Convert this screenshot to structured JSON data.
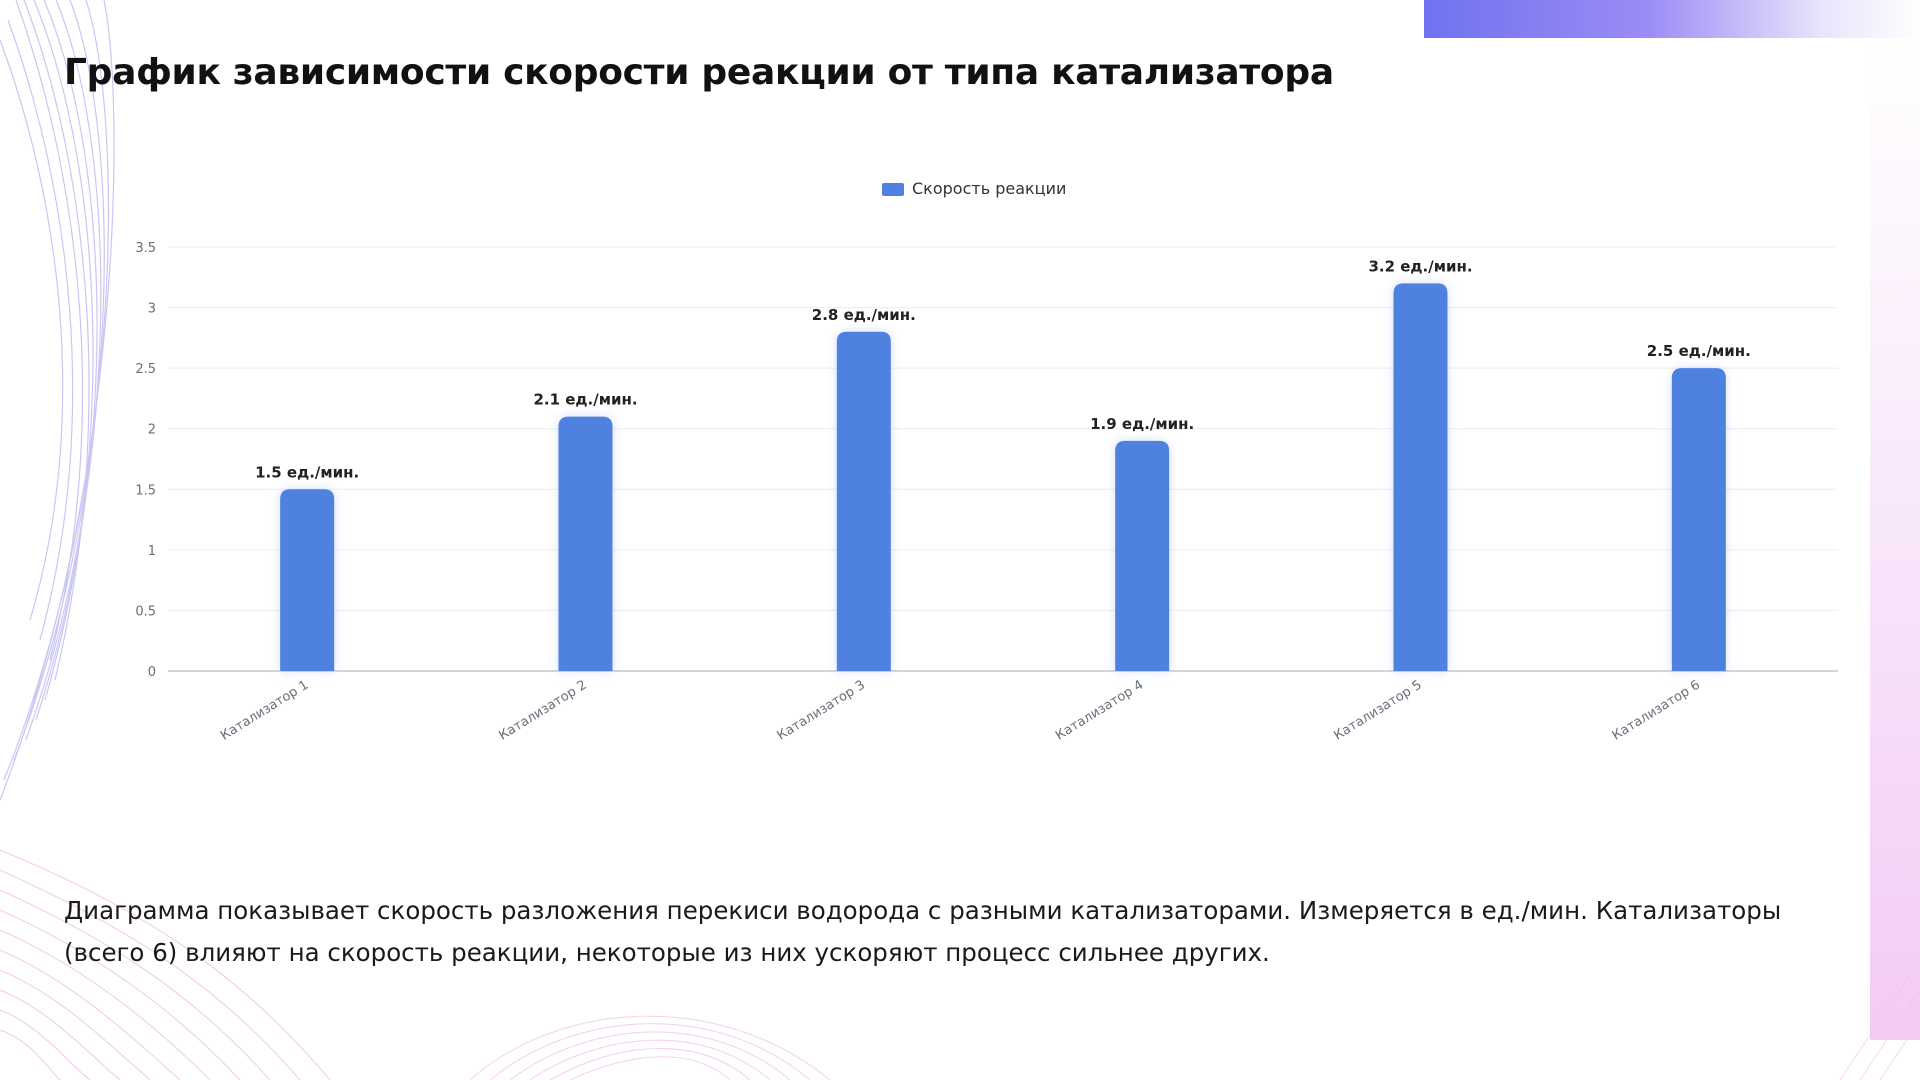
{
  "page": {
    "title": "График зависимости скорости реакции от типа катализатора",
    "caption": "Диаграмма показывает скорость разложения перекиси водорода с разными катализаторами. Измеряется в ед./мин. Катализаторы (всего 6) влияют на скорость реакции, некоторые из них ускоряют процесс сильнее других."
  },
  "colors": {
    "bar": "#4f82e0",
    "grid": "#ececf2",
    "axis": "#b9bccb",
    "tick_text": "#6b6e7a",
    "label_text": "#222222",
    "accent": "#7b7cf2"
  },
  "chart_data": {
    "type": "bar",
    "categories": [
      "Катализатор 1",
      "Катализатор 2",
      "Катализатор 3",
      "Катализатор 4",
      "Катализатор 5",
      "Катализатор 6"
    ],
    "series": [
      {
        "name": "Скорость реакции",
        "values": [
          1.5,
          2.1,
          2.8,
          1.9,
          3.2,
          2.5
        ],
        "data_labels": [
          "1.5 ед./мин.",
          "2.1 ед./мин.",
          "2.8 ед./мин.",
          "1.9 ед./мин.",
          "3.2 ед./мин.",
          "2.5 ед./мин."
        ]
      }
    ],
    "yticks": [
      "0",
      "0.5",
      "1",
      "1.5",
      "2",
      "2.5",
      "3",
      "3.5"
    ],
    "ylim": [
      0,
      3.5
    ],
    "xlabel": "",
    "ylabel": "",
    "grid": true,
    "legend_position": "top-center",
    "x_tick_rotation": "rotated"
  }
}
